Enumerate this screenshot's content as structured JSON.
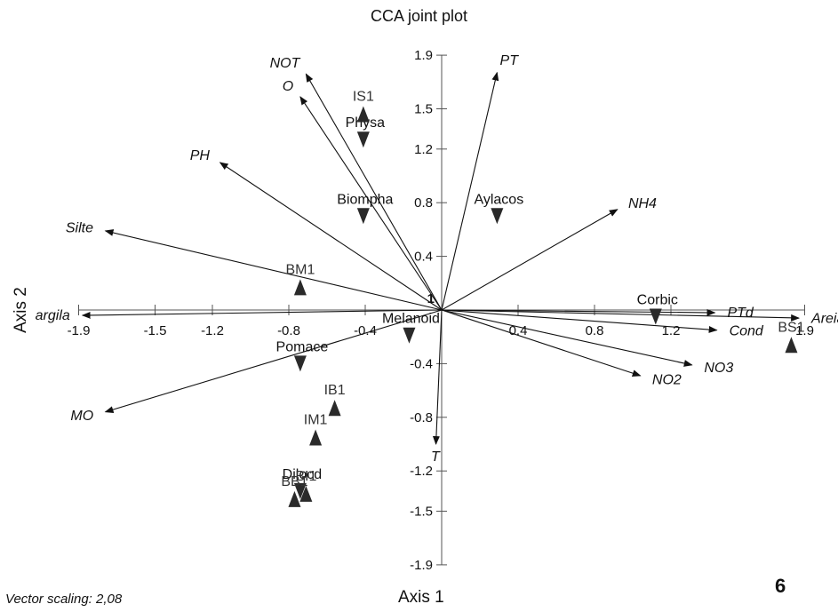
{
  "chart_data": {
    "type": "scatter",
    "title": "CCA joint plot",
    "xlabel": "Axis 1",
    "ylabel": "Axis 2",
    "xlim": [
      -1.9,
      1.9
    ],
    "ylim": [
      -1.9,
      1.9
    ],
    "x_ticks": [
      "-1.9",
      "-1.5",
      "-1.2",
      "-0.8",
      "-0.4",
      "0.4",
      "0.8",
      "1.2",
      "1.9"
    ],
    "y_ticks": [
      "1.9",
      "1.5",
      "1.2",
      "0.8",
      "0.4",
      "-0.4",
      "-0.8",
      "-1.2",
      "-1.5",
      "-1.9"
    ],
    "origin_label": "1",
    "vectors": [
      {
        "name": "NOT",
        "x": -0.71,
        "y": 1.76
      },
      {
        "name": "O",
        "x": -0.74,
        "y": 1.59
      },
      {
        "name": "PT",
        "x": 0.29,
        "y": 1.77
      },
      {
        "name": "PH",
        "x": -1.16,
        "y": 1.1
      },
      {
        "name": "NH4",
        "x": 0.92,
        "y": 0.75
      },
      {
        "name": "Silte",
        "x": -1.76,
        "y": 0.59
      },
      {
        "name": "argila",
        "x": -1.88,
        "y": -0.04
      },
      {
        "name": "PTd",
        "x": 1.43,
        "y": -0.02
      },
      {
        "name": "Areia",
        "x": 1.87,
        "y": -0.06
      },
      {
        "name": "Cond",
        "x": 1.44,
        "y": -0.15
      },
      {
        "name": "NO3",
        "x": 1.31,
        "y": -0.41
      },
      {
        "name": "NO2",
        "x": 1.04,
        "y": -0.49
      },
      {
        "name": "MO",
        "x": -1.76,
        "y": -0.76
      },
      {
        "name": "T",
        "x": -0.03,
        "y": -1.0
      }
    ],
    "species": [
      {
        "name": "Physa",
        "x": -0.41,
        "y": 1.27
      },
      {
        "name": "Biompha",
        "x": -0.41,
        "y": 0.7
      },
      {
        "name": "Aylacos",
        "x": 0.29,
        "y": 0.7
      },
      {
        "name": "Corbic",
        "x": 1.12,
        "y": -0.05
      },
      {
        "name": "Melanoid",
        "x": -0.17,
        "y": -0.19
      },
      {
        "name": "Pomace",
        "x": -0.74,
        "y": -0.4
      },
      {
        "name": "Dilocd",
        "x": -0.74,
        "y": -1.35
      }
    ],
    "sites": [
      {
        "name": "IS1",
        "x": -0.41,
        "y": 1.46
      },
      {
        "name": "BM1",
        "x": -0.74,
        "y": 0.17
      },
      {
        "name": "BS1",
        "x": 1.83,
        "y": -0.26
      },
      {
        "name": "IB1",
        "x": -0.56,
        "y": -0.73
      },
      {
        "name": "IM1",
        "x": -0.66,
        "y": -0.95
      },
      {
        "name": "BB1",
        "x": -0.77,
        "y": -1.41
      },
      {
        "name": "BI1",
        "x": -0.71,
        "y": -1.37
      }
    ]
  },
  "annotations": {
    "vector_scaling": "Vector scaling: 2,08",
    "panel_number": "6"
  },
  "colors": {
    "axis": "#555555",
    "arrow": "#111111",
    "marker": "#2a2a2a"
  }
}
